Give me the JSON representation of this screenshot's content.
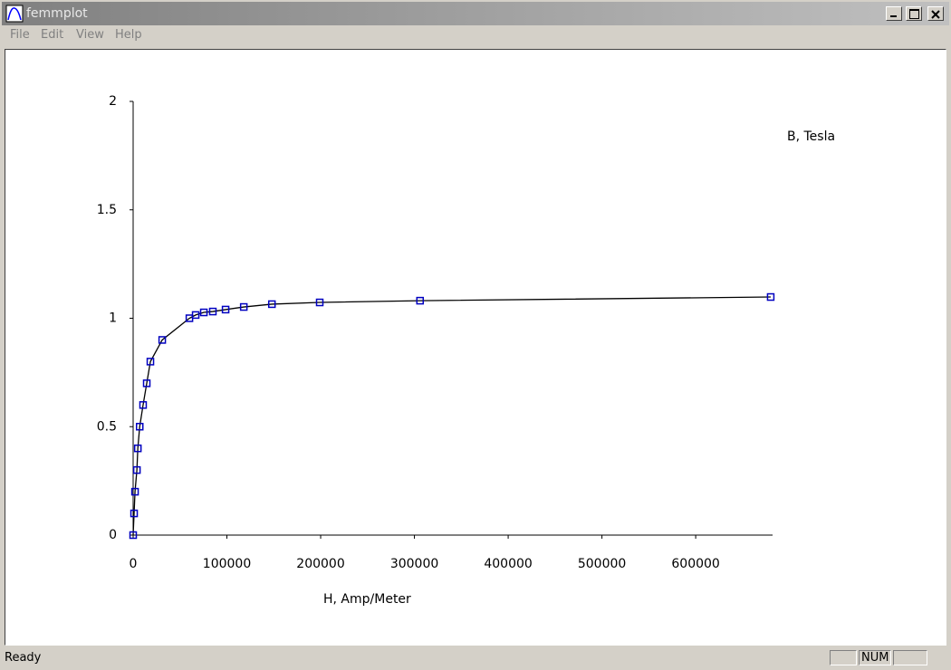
{
  "window": {
    "title": "femmplot",
    "menu": [
      "File",
      "Edit",
      "View",
      "Help"
    ],
    "status": "Ready",
    "indicators": [
      "NUM"
    ]
  },
  "chart_data": {
    "type": "line",
    "xlabel": "H, Amp/Meter",
    "ylabel": "B, Tesla",
    "x": [
      0,
      1000,
      2000,
      4000,
      5000,
      7000,
      10600,
      14500,
      18400,
      31000,
      60000,
      66700,
      75400,
      85000,
      98600,
      118000,
      148000,
      199000,
      306000,
      680000
    ],
    "values": [
      0,
      0.1,
      0.2,
      0.3,
      0.4,
      0.5,
      0.6,
      0.7,
      0.8,
      0.9,
      1.0,
      1.015,
      1.027,
      1.031,
      1.04,
      1.052,
      1.065,
      1.073,
      1.081,
      1.098
    ],
    "color": "#0000c0",
    "line_color": "#000000",
    "marker": "square",
    "xlim": [
      0,
      682000
    ],
    "ylim": [
      0,
      2
    ],
    "xticks": [
      0,
      100000,
      200000,
      300000,
      400000,
      500000,
      600000
    ],
    "yticks": [
      0,
      0.5,
      1,
      1.5,
      2
    ]
  }
}
